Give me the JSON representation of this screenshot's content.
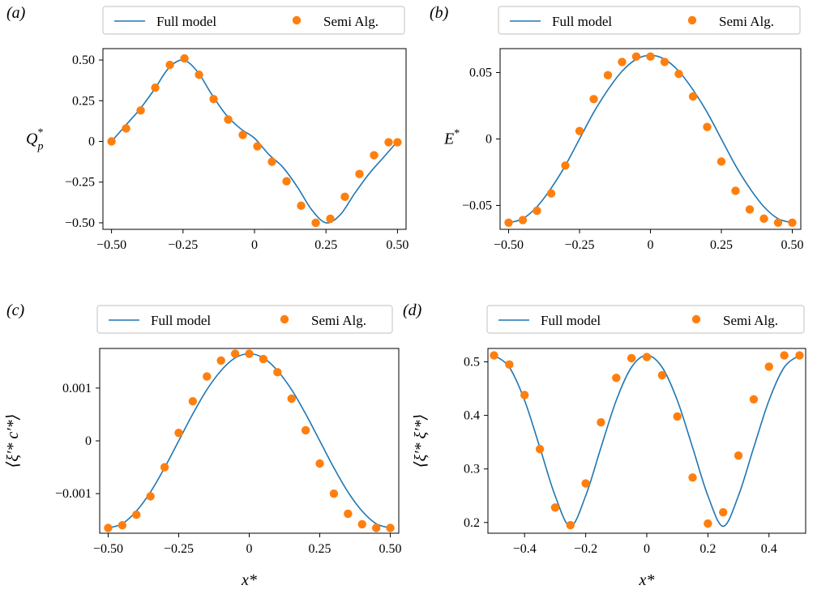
{
  "colors": {
    "line": "#1f77b4",
    "marker": "#ff7f0e",
    "axis": "#000000",
    "legend_border": "#cccccc"
  },
  "legend": {
    "line_label": "Full model",
    "marker_label": "Semi Alg."
  },
  "chart_data": [
    {
      "panel_label": "(a)",
      "type": "line",
      "ylabel_main": "Q",
      "ylabel_sub": "p",
      "ylabel_sup": "*",
      "xlabel": "",
      "xlim": [
        -0.53,
        0.53
      ],
      "ylim": [
        -0.54,
        0.57
      ],
      "xticks": [
        -0.5,
        -0.25,
        0,
        0.25,
        0.5
      ],
      "xtick_labels": [
        "−0.50",
        "−0.25",
        "0",
        "0.25",
        "0.50"
      ],
      "yticks": [
        -0.5,
        -0.25,
        0,
        0.25,
        0.5
      ],
      "ytick_labels": [
        "−0.50",
        "−0.25",
        "0",
        "0.25",
        "0.50"
      ],
      "series": [
        {
          "name": "Full model",
          "kind": "line",
          "x": [
            -0.5,
            -0.45,
            -0.4,
            -0.35,
            -0.3,
            -0.25,
            -0.2,
            -0.15,
            -0.1,
            -0.05,
            0,
            0.05,
            0.1,
            0.15,
            0.2,
            0.25,
            0.3,
            0.35,
            0.4,
            0.45,
            0.5
          ],
          "y": [
            0,
            0.1,
            0.2,
            0.32,
            0.45,
            0.5,
            0.43,
            0.29,
            0.165,
            0.08,
            0.02,
            -0.08,
            -0.16,
            -0.28,
            -0.42,
            -0.5,
            -0.45,
            -0.32,
            -0.2,
            -0.1,
            0
          ]
        },
        {
          "name": "Semi Alg.",
          "kind": "marker",
          "x": [
            -0.5,
            -0.449,
            -0.398,
            -0.347,
            -0.296,
            -0.245,
            -0.194,
            -0.143,
            -0.092,
            -0.041,
            0.01,
            0.061,
            0.112,
            0.163,
            0.214,
            0.265,
            0.316,
            0.367,
            0.418,
            0.469,
            0.5
          ],
          "y": [
            0,
            0.08,
            0.19,
            0.33,
            0.47,
            0.51,
            0.41,
            0.26,
            0.135,
            0.04,
            -0.03,
            -0.125,
            -0.245,
            -0.395,
            -0.5,
            -0.475,
            -0.34,
            -0.2,
            -0.085,
            -0.005,
            -0.005
          ]
        }
      ]
    },
    {
      "panel_label": "(b)",
      "type": "line",
      "ylabel_main": "E",
      "ylabel_sub": "",
      "ylabel_sup": "*",
      "xlabel": "",
      "xlim": [
        -0.53,
        0.53
      ],
      "ylim": [
        -0.068,
        0.068
      ],
      "xticks": [
        -0.5,
        -0.25,
        0,
        0.25,
        0.5
      ],
      "xtick_labels": [
        "−0.50",
        "−0.25",
        "0",
        "0.25",
        "0.50"
      ],
      "yticks": [
        -0.05,
        0,
        0.05
      ],
      "ytick_labels": [
        "−0.05",
        "0",
        "0.05"
      ],
      "series": [
        {
          "name": "Full model",
          "kind": "line",
          "x": [
            -0.5,
            -0.45,
            -0.4,
            -0.35,
            -0.3,
            -0.25,
            -0.2,
            -0.15,
            -0.1,
            -0.05,
            0,
            0.05,
            0.1,
            0.15,
            0.2,
            0.25,
            0.3,
            0.35,
            0.4,
            0.45,
            0.5
          ],
          "y": [
            -0.063,
            -0.06,
            -0.051,
            -0.037,
            -0.02,
            0.0,
            0.02,
            0.037,
            0.051,
            0.06,
            0.063,
            0.06,
            0.051,
            0.037,
            0.02,
            0.0,
            -0.02,
            -0.037,
            -0.051,
            -0.06,
            -0.063
          ]
        },
        {
          "name": "Semi Alg.",
          "kind": "marker",
          "x": [
            -0.5,
            -0.45,
            -0.4,
            -0.35,
            -0.3,
            -0.25,
            -0.2,
            -0.15,
            -0.1,
            -0.05,
            0,
            0.05,
            0.1,
            0.15,
            0.2,
            0.25,
            0.3,
            0.35,
            0.4,
            0.45,
            0.5
          ],
          "y": [
            -0.063,
            -0.061,
            -0.054,
            -0.041,
            -0.02,
            0.006,
            0.03,
            0.048,
            0.058,
            0.062,
            0.062,
            0.058,
            0.049,
            0.032,
            0.009,
            -0.017,
            -0.039,
            -0.053,
            -0.06,
            -0.063,
            -0.063
          ]
        }
      ]
    },
    {
      "panel_label": "(c)",
      "type": "line",
      "ylabel_main": "⟨ξ′* c′*⟩",
      "ylabel_sub": "",
      "ylabel_sup": "",
      "xlabel": "x*",
      "xlim": [
        -0.53,
        0.53
      ],
      "ylim": [
        -0.00175,
        0.00175
      ],
      "xticks": [
        -0.5,
        -0.25,
        0,
        0.25,
        0.5
      ],
      "xtick_labels": [
        "−0.50",
        "−0.25",
        "0",
        "0.25",
        "0.50"
      ],
      "yticks": [
        -0.001,
        0,
        0.001
      ],
      "ytick_labels": [
        "−0.001",
        "0",
        "0.001"
      ],
      "series": [
        {
          "name": "Full model",
          "kind": "line",
          "x": [
            -0.5,
            -0.45,
            -0.4,
            -0.35,
            -0.3,
            -0.25,
            -0.2,
            -0.15,
            -0.1,
            -0.05,
            0,
            0.05,
            0.1,
            0.15,
            0.2,
            0.25,
            0.3,
            0.35,
            0.4,
            0.45,
            0.5
          ],
          "y": [
            -0.00165,
            -0.00157,
            -0.00133,
            -0.00097,
            -0.00051,
            0.0,
            0.00051,
            0.00097,
            0.00133,
            0.00157,
            0.00165,
            0.00157,
            0.00133,
            0.00097,
            0.00051,
            0.0,
            -0.00051,
            -0.00097,
            -0.00133,
            -0.00157,
            -0.00165
          ]
        },
        {
          "name": "Semi Alg.",
          "kind": "marker",
          "x": [
            -0.5,
            -0.45,
            -0.4,
            -0.35,
            -0.3,
            -0.25,
            -0.2,
            -0.15,
            -0.1,
            -0.05,
            0,
            0.05,
            0.1,
            0.15,
            0.2,
            0.25,
            0.3,
            0.35,
            0.4,
            0.45,
            0.5
          ],
          "y": [
            -0.00165,
            -0.0016,
            -0.0014,
            -0.00105,
            -0.0005,
            0.00015,
            0.00075,
            0.00122,
            0.00152,
            0.00165,
            0.00165,
            0.00155,
            0.0013,
            0.0008,
            0.0002,
            -0.00043,
            -0.001,
            -0.00138,
            -0.00158,
            -0.00165,
            -0.00165
          ]
        }
      ]
    },
    {
      "panel_label": "(d)",
      "type": "line",
      "ylabel_main": "⟨ξ′* ξ′*⟩",
      "ylabel_sub": "",
      "ylabel_sup": "",
      "xlabel": "x*",
      "xlim": [
        -0.52,
        0.52
      ],
      "ylim": [
        0.18,
        0.525
      ],
      "xticks": [
        -0.4,
        -0.2,
        0,
        0.2,
        0.4
      ],
      "xtick_labels": [
        "−0.4",
        "−0.2",
        "0",
        "0.2",
        "0.4"
      ],
      "yticks": [
        0.2,
        0.3,
        0.4,
        0.5
      ],
      "ytick_labels": [
        "0.2",
        "0.3",
        "0.4",
        "0.5"
      ],
      "series": [
        {
          "name": "Full model",
          "kind": "line",
          "x": [
            -0.5,
            -0.45,
            -0.4,
            -0.35,
            -0.3,
            -0.25,
            -0.2,
            -0.15,
            -0.1,
            -0.05,
            0,
            0.05,
            0.1,
            0.15,
            0.2,
            0.25,
            0.3,
            0.35,
            0.4,
            0.45,
            0.5
          ],
          "y": [
            0.512,
            0.49,
            0.428,
            0.34,
            0.25,
            0.193,
            0.25,
            0.34,
            0.428,
            0.49,
            0.512,
            0.49,
            0.428,
            0.34,
            0.25,
            0.193,
            0.25,
            0.34,
            0.428,
            0.49,
            0.512
          ]
        },
        {
          "name": "Semi Alg.",
          "kind": "marker",
          "x": [
            -0.5,
            -0.45,
            -0.4,
            -0.35,
            -0.3,
            -0.25,
            -0.2,
            -0.15,
            -0.1,
            -0.05,
            0,
            0.05,
            0.1,
            0.15,
            0.2,
            0.25,
            0.3,
            0.35,
            0.4,
            0.45,
            0.5
          ],
          "y": [
            0.512,
            0.495,
            0.438,
            0.337,
            0.228,
            0.195,
            0.273,
            0.387,
            0.47,
            0.507,
            0.509,
            0.475,
            0.398,
            0.284,
            0.198,
            0.219,
            0.325,
            0.43,
            0.491,
            0.512,
            0.512
          ]
        }
      ]
    }
  ]
}
